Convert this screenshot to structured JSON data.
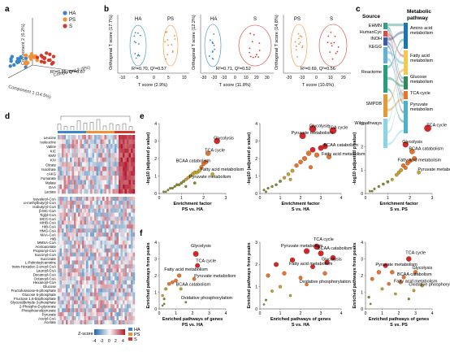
{
  "panel_letters": [
    "a",
    "b",
    "c",
    "d",
    "e",
    "f"
  ],
  "groups": [
    {
      "name": "HA",
      "color": "#3a86c8"
    },
    {
      "name": "PS",
      "color": "#f0913a"
    },
    {
      "name": "S",
      "color": "#d43a2c"
    }
  ],
  "panel_a": {
    "axis_labels": [
      "Component 2 (6.2%)",
      "Component 1 (14.5%)",
      "Component 3 (8%)"
    ],
    "stat": "R²=0.85, Q²=0.67"
  },
  "panel_b": {
    "x_label": "T score",
    "y_label": "Orthogonal T score",
    "plots": [
      {
        "y_label": "Orthogonal T score (17.7%)",
        "x_label": "T score (2.9%)",
        "left": "HA",
        "right": "PS",
        "stat": "R²=0.70, Q²=0.57",
        "xticks": [
          "-10",
          "-5",
          "0",
          "5",
          "10"
        ]
      },
      {
        "y_label": "Orthogonal T score (12.2%)",
        "x_label": "T score (11.8%)",
        "left": "HA",
        "right": "S",
        "stat": "R²=0.71, Q²=0.52",
        "xticks": [
          "-30",
          "-20",
          "-10",
          "0",
          "10",
          "20",
          "30"
        ]
      },
      {
        "y_label": "Orthogonal T score (14.8%)",
        "x_label": "T score (10.6%)",
        "left": "PS",
        "right": "S",
        "stat": "R²=0.69, Q²=0.56",
        "xticks": [
          "-20",
          "-10",
          "0",
          "10",
          "20"
        ]
      }
    ]
  },
  "panel_c": {
    "source_title": "Source",
    "pathway_title": "Metabolic pathway",
    "sources": [
      {
        "label": "EHMN",
        "color": "#3b9a8a"
      },
      {
        "label": "HumanCyc",
        "color": "#d94c4c"
      },
      {
        "label": "INOH",
        "color": "#3a5fa8"
      },
      {
        "label": "KEGG",
        "color": "#5fb3d6"
      },
      {
        "label": "Reactome",
        "color": "#2a9d7a"
      },
      {
        "label": "SMPDB",
        "color": "#e39b3a"
      },
      {
        "label": "Wikipathways",
        "color": "#8cd3e6"
      }
    ],
    "pathways": [
      {
        "label": "Amino acid metabolism",
        "color": "#1b75b3"
      },
      {
        "label": "Fatty acid metabolism",
        "color": "#f2c94c"
      },
      {
        "label": "Glucose metabolism",
        "color": "#2e8b57"
      },
      {
        "label": "TCA cycle",
        "color": "#e8742a"
      },
      {
        "label": "Pyruvate metabolism",
        "color": "#4bb3c8"
      }
    ]
  },
  "panel_d": {
    "metabolites_top": [
      "Leucine",
      "Isoleucine",
      "Valine",
      "KIC",
      "KMV",
      "KIV",
      "Citrate",
      "Isocitrate",
      "cAKG",
      "Fumarate",
      "Malate",
      "OAA",
      "Lactate"
    ],
    "metabolites_bottom": [
      "Isovaleryl-CoA",
      "α-methylbutyryl-CoA",
      "Isobutyryl-CoA",
      "β-MC-CoA",
      "Tiglyl-CoA",
      "MCC-CoA",
      "MHB-CoA",
      "HIB-CoA",
      "HMG-CoA",
      "MAA-CoA",
      "HIB",
      "MMSA-CoA",
      "Acetoacetate",
      "Propionyl-CoA",
      "Succinyl-CoA",
      "Succinate",
      "L-Palmitoylcarnitine",
      "trans-Hexadec-2-enoyl-CoA",
      "Lauroyl-CoA",
      "Decanoyl-CoA",
      "Octanoyl-CoA",
      "Hexanoyl-CoA",
      "Glucose",
      "Fructofuranose-6-phosphate",
      "Glucose 6-phosphate",
      "Fructose 1,6-bisphosphate",
      "Glyceraldehyde-3-phosphate",
      "2-Phospho-D-glycerate",
      "Phosphoenolpyruvate",
      "Pyruvate",
      "Acetyl-CoA",
      "Acetate"
    ],
    "legend_title": "Z-score",
    "legend_ticks": [
      "-4",
      "-2",
      "0",
      "2",
      "4"
    ],
    "group_legend": [
      "HA",
      "PS",
      "S"
    ]
  },
  "panel_e": {
    "y_label": "-log10 (adjusted p value)",
    "x_label": "Enrichment factor",
    "plots": [
      {
        "title": "PS vs. HA",
        "xlim": [
          0,
          3
        ],
        "ylim": [
          0,
          4
        ],
        "xticks": [
          "0",
          "1",
          "2",
          "3"
        ],
        "yticks": [
          "0",
          "1",
          "2",
          "3",
          "4"
        ],
        "labels": [
          {
            "text": "Glycolysis",
            "x": 2.6,
            "y": 3.0
          },
          {
            "text": "TCA cycle",
            "x": 2.2,
            "y": 2.3
          },
          {
            "text": "BCAA catabolism",
            "x": 0.9,
            "y": 1.7
          },
          {
            "text": "Fatty acid metabolism",
            "x": 2.0,
            "y": 1.2
          },
          {
            "text": "Pyruvate metabolism",
            "x": 1.5,
            "y": 0.8
          }
        ],
        "points": [
          [
            0.2,
            0.1
          ],
          [
            0.4,
            0.2
          ],
          [
            0.5,
            0.3
          ],
          [
            0.6,
            0.3
          ],
          [
            0.7,
            0.4
          ],
          [
            0.8,
            0.5
          ],
          [
            0.9,
            0.5
          ],
          [
            1.0,
            0.6
          ],
          [
            1.1,
            0.7
          ],
          [
            1.2,
            0.8
          ],
          [
            1.3,
            0.9
          ],
          [
            1.4,
            1.0
          ],
          [
            1.5,
            1.1
          ],
          [
            1.6,
            1.2
          ],
          [
            1.7,
            1.2
          ],
          [
            1.8,
            1.3
          ],
          [
            1.9,
            1.5
          ],
          [
            2.0,
            1.7
          ],
          [
            2.1,
            1.8
          ],
          [
            2.2,
            2.3
          ],
          [
            2.4,
            1.1
          ],
          [
            2.6,
            3.0
          ],
          [
            1.2,
            0.4
          ],
          [
            1.6,
            0.6
          ],
          [
            0.3,
            0.1
          ]
        ]
      },
      {
        "title": "S vs. HA",
        "xlim": [
          0,
          4
        ],
        "ylim": [
          0,
          4
        ],
        "xticks": [
          "0",
          "1",
          "2",
          "3",
          "4"
        ],
        "yticks": [
          "0",
          "1",
          "2",
          "3",
          "4"
        ],
        "labels": [
          {
            "text": "Glycolysis",
            "x": 2.6,
            "y": 3.7
          },
          {
            "text": "TCA cycle",
            "x": 3.5,
            "y": 3.6
          },
          {
            "text": "Pyruvate metabolism",
            "x": 1.7,
            "y": 3.3
          },
          {
            "text": "BCAA catabolism",
            "x": 3.3,
            "y": 2.6
          },
          {
            "text": "Fatty acid metabolism",
            "x": 3.2,
            "y": 2.1
          }
        ],
        "points": [
          [
            0.2,
            0.2
          ],
          [
            0.4,
            0.3
          ],
          [
            0.6,
            0.4
          ],
          [
            0.8,
            0.5
          ],
          [
            1.0,
            0.7
          ],
          [
            1.2,
            0.9
          ],
          [
            1.4,
            1.1
          ],
          [
            1.6,
            1.3
          ],
          [
            1.8,
            1.6
          ],
          [
            2.0,
            1.8
          ],
          [
            2.2,
            2.0
          ],
          [
            2.4,
            2.3
          ],
          [
            2.6,
            2.5
          ],
          [
            2.8,
            2.2
          ],
          [
            3.0,
            2.6
          ],
          [
            3.2,
            2.7
          ],
          [
            3.4,
            2.1
          ],
          [
            3.6,
            3.6
          ],
          [
            2.6,
            3.7
          ],
          [
            2.1,
            3.3
          ],
          [
            1.5,
            0.8
          ],
          [
            2.5,
            1.5
          ],
          [
            0.3,
            0.1
          ]
        ]
      },
      {
        "title": "S vs. PS",
        "xlim": [
          0,
          3
        ],
        "ylim": [
          0,
          3
        ],
        "xticks": [
          "0",
          "1",
          "2",
          "3"
        ],
        "yticks": [
          "0",
          "1",
          "2",
          "3"
        ],
        "labels": [
          {
            "text": "TCA cycle",
            "x": 2.9,
            "y": 2.8
          },
          {
            "text": "Glycolysis",
            "x": 1.8,
            "y": 2.1
          },
          {
            "text": "BCAA catabolism",
            "x": 2.1,
            "y": 1.8
          },
          {
            "text": "Fatty acid metabolism",
            "x": 1.6,
            "y": 1.3
          },
          {
            "text": "Pyruvate metabolism",
            "x": 2.5,
            "y": 0.9
          }
        ],
        "points": [
          [
            0.2,
            0.1
          ],
          [
            0.4,
            0.2
          ],
          [
            0.6,
            0.3
          ],
          [
            0.8,
            0.4
          ],
          [
            1.0,
            0.5
          ],
          [
            1.2,
            0.6
          ],
          [
            1.4,
            0.8
          ],
          [
            1.5,
            0.9
          ],
          [
            1.6,
            1.0
          ],
          [
            1.7,
            1.2
          ],
          [
            1.8,
            1.1
          ],
          [
            1.9,
            1.3
          ],
          [
            2.0,
            1.4
          ],
          [
            2.1,
            1.8
          ],
          [
            2.2,
            1.5
          ],
          [
            2.4,
            0.9
          ],
          [
            2.8,
            2.8
          ],
          [
            1.8,
            2.1
          ],
          [
            0.3,
            0.1
          ]
        ]
      }
    ]
  },
  "panel_f": {
    "y_label": "Enriched pathways from peaks",
    "x_label": "Enriched pathways of genes",
    "plots": [
      {
        "title": "PS vs. HA",
        "xlim": [
          0,
          4
        ],
        "ylim": [
          0,
          4
        ],
        "xticks": [
          "0",
          "1",
          "2",
          "3",
          "4"
        ],
        "yticks": [
          "0",
          "1",
          "2",
          "3",
          "4"
        ],
        "labels": [
          {
            "text": "Glycolysis",
            "x": 2.1,
            "y": 3.6
          },
          {
            "text": "TCA cycle",
            "x": 2.4,
            "y": 2.7
          },
          {
            "text": "Fatty acid metabolism",
            "x": 0.5,
            "y": 2.2
          },
          {
            "text": "Pyruvate metabolism",
            "x": 2.3,
            "y": 1.8
          },
          {
            "text": "BCAA catabolism",
            "x": 1.2,
            "y": 1.3
          },
          {
            "text": "Oxidative phosphorylation",
            "x": 1.5,
            "y": 0.5
          }
        ],
        "points": [
          [
            2.2,
            3.3
          ],
          [
            2.3,
            2.6
          ],
          [
            1.2,
            2.0
          ],
          [
            2.1,
            1.8
          ],
          [
            1.3,
            1.2
          ],
          [
            1.6,
            0.4
          ],
          [
            0.3,
            0.3
          ],
          [
            0.2,
            0.8
          ],
          [
            0.4,
            1.2
          ],
          [
            0.6,
            1.5
          ],
          [
            0.8,
            1.6
          ],
          [
            1.0,
            1.7
          ],
          [
            0.3,
            0.6
          ],
          [
            0.2,
            0.2
          ]
        ]
      },
      {
        "title": "S vs. HA",
        "xlim": [
          0,
          4
        ],
        "ylim": [
          0,
          3
        ],
        "xticks": [
          "0",
          "1",
          "2",
          "3",
          "4"
        ],
        "yticks": [
          "0",
          "1",
          "2",
          "3"
        ],
        "labels": [
          {
            "text": "TCA cycle",
            "x": 2.8,
            "y": 3.0
          },
          {
            "text": "Pyruvate metabolism",
            "x": 1.2,
            "y": 2.7
          },
          {
            "text": "BCAA catabolism",
            "x": 3.0,
            "y": 2.6
          },
          {
            "text": "Glycolysis",
            "x": 3.2,
            "y": 2.1
          },
          {
            "text": "Fatty acid metabolism",
            "x": 1.6,
            "y": 1.9
          },
          {
            "text": "Oxidative phosphorylation",
            "x": 2.1,
            "y": 1.1
          }
        ],
        "points": [
          [
            2.8,
            2.8
          ],
          [
            2.3,
            2.6
          ],
          [
            3.0,
            2.5
          ],
          [
            3.3,
            2.1
          ],
          [
            2.6,
            1.9
          ],
          [
            2.3,
            1.1
          ],
          [
            0.4,
            1.5
          ],
          [
            0.8,
            2.0
          ],
          [
            1.2,
            1.6
          ],
          [
            1.6,
            2.2
          ],
          [
            2.0,
            1.4
          ],
          [
            3.6,
            2.3
          ],
          [
            0.3,
            0.4
          ],
          [
            0.6,
            0.8
          ],
          [
            1.0,
            1.0
          ],
          [
            1.5,
            0.6
          ],
          [
            0.2,
            0.2
          ],
          [
            3.2,
            1.6
          ]
        ]
      },
      {
        "title": "S vs. PS",
        "xlim": [
          0,
          4
        ],
        "ylim": [
          0,
          4
        ],
        "xticks": [
          "0",
          "1",
          "2",
          "3",
          "4"
        ],
        "yticks": [
          "0",
          "1",
          "2",
          "3",
          "4"
        ],
        "labels": [
          {
            "text": "TCA cycle",
            "x": 2.6,
            "y": 3.2
          },
          {
            "text": "Pyruvate metabolism",
            "x": 0.8,
            "y": 2.5
          },
          {
            "text": "Glycolysis",
            "x": 3.0,
            "y": 2.3
          },
          {
            "text": "BCAA catabolism",
            "x": 2.1,
            "y": 1.9
          },
          {
            "text": "Oxidative phosphorylation",
            "x": 2.8,
            "y": 1.3
          },
          {
            "text": "Fatty acid metabolism",
            "x": 1.9,
            "y": 1.5
          }
        ],
        "points": [
          [
            2.6,
            3.0
          ],
          [
            3.0,
            2.2
          ],
          [
            2.3,
            1.9
          ],
          [
            2.1,
            1.6
          ],
          [
            2.9,
            1.1
          ],
          [
            1.6,
            2.2
          ],
          [
            0.4,
            1.8
          ],
          [
            0.8,
            2.2
          ],
          [
            1.2,
            2.6
          ],
          [
            1.0,
            1.2
          ],
          [
            1.4,
            1.5
          ],
          [
            1.8,
            0.9
          ],
          [
            2.6,
            0.6
          ],
          [
            3.4,
            1.4
          ],
          [
            0.3,
            0.3
          ],
          [
            0.2,
            0.7
          ]
        ]
      }
    ]
  }
}
